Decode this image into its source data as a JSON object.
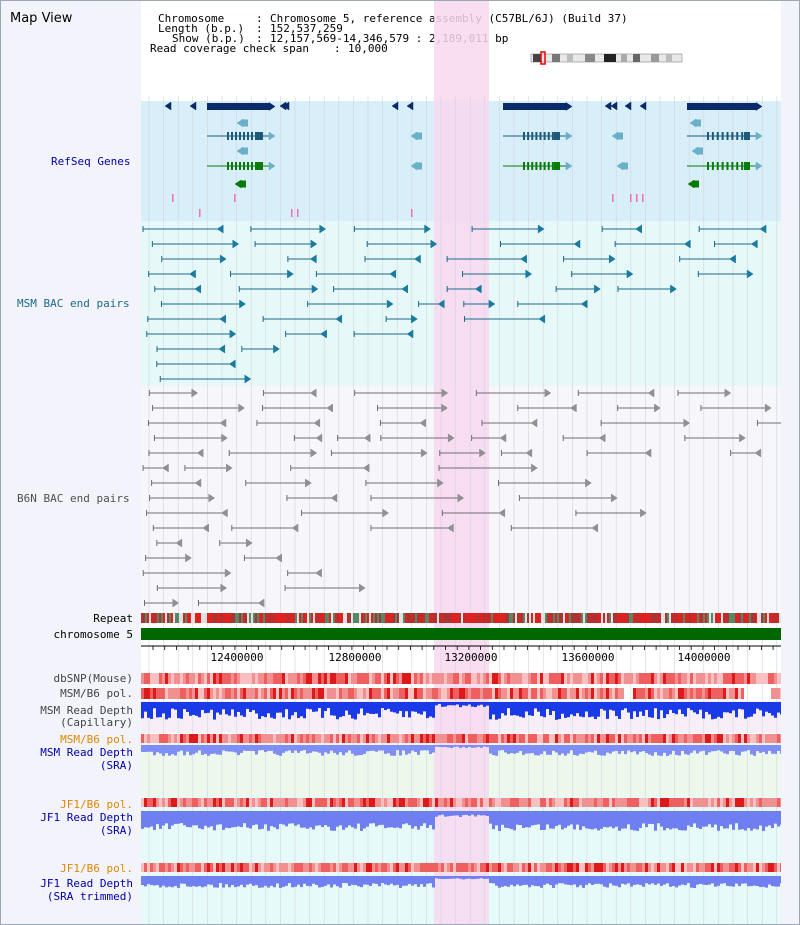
{
  "app": {
    "title": "Map View"
  },
  "info": {
    "chromosome_key": "Chromosome",
    "chromosome_val": "Chromosome 5, reference assembly (C57BL/6J) (Build 37)",
    "length_key": "Length (b.p.)",
    "length_val": "152,537,259",
    "show_key": "Show (b.p.)",
    "show_val": "12,157,569-14,346,579 : 2,189,011 bp",
    "coverage_key": "Read coverage check span",
    "coverage_val": "10,000"
  },
  "tracks": {
    "refseq": "RefSeq Genes",
    "msm_bac": "MSM BAC end pairs",
    "b6n_bac": "B6N BAC end pairs",
    "repeat": "Repeat",
    "chromosome": "chromosome 5",
    "dbsnp": "dbSNP(Mouse)",
    "msm_b6_pol": "MSM/B6 pol.",
    "msm_depth_cap_1": "MSM Read Depth",
    "msm_depth_cap_2": "(Capillary)",
    "msm_b6_pol_2": "MSM/B6 pol.",
    "msm_depth_sra_1": "MSM Read Depth",
    "msm_depth_sra_2": "(SRA)",
    "jf1_b6_pol": "JF1/B6 pol.",
    "jf1_depth_sra_1": "JF1 Read Depth",
    "jf1_depth_sra_2": "(SRA)",
    "jf1_b6_pol_2": "JF1/B6 pol.",
    "jf1_depth_trim_1": "JF1 Read Depth",
    "jf1_depth_trim_2": "(SRA trimmed)"
  },
  "scale": {
    "ticks": [
      "12400000",
      "12800000",
      "13200000",
      "13600000",
      "14000000"
    ]
  },
  "colors": {
    "refseq_bg": "#d8eef8",
    "bac_bg": "#e6f8f8",
    "highlight": "#f8d8f0",
    "gene_dark": "#0b2a6a",
    "gene_green": "#0a7a0a",
    "msm_pair": "#1a6a8a",
    "b6n_pair": "#707070",
    "chromosome": "#006600",
    "label_blue": "#0000aa",
    "label_orange": "#dd8800"
  }
}
